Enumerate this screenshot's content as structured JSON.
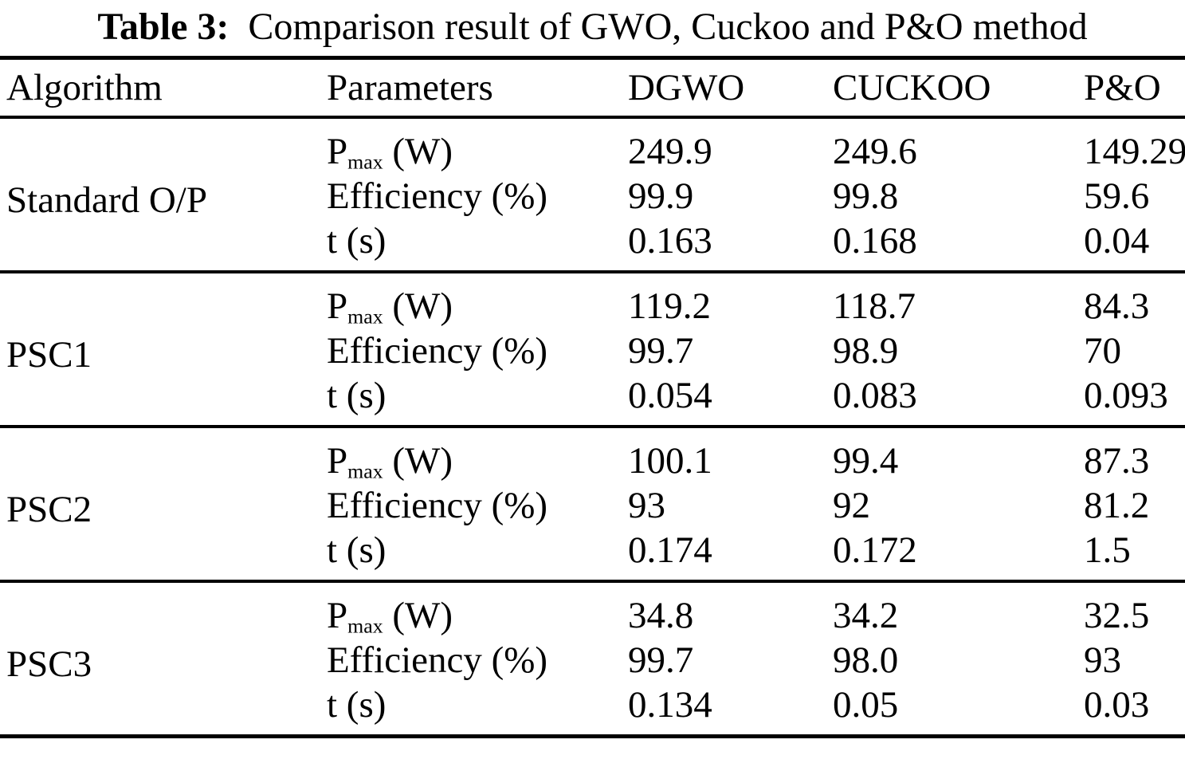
{
  "title": {
    "label": "Table 3:",
    "text": "Comparison result of GWO, Cuckoo and P&O method"
  },
  "params": {
    "pmax": {
      "base": "P",
      "sub": "max",
      "unit": "(W)"
    },
    "efficiency": "Efficiency (%)",
    "time": "t (s)"
  },
  "table": {
    "headers": [
      "Algorithm",
      "Parameters",
      "DGWO",
      "CUCKOO",
      "P&O"
    ],
    "groups": [
      {
        "algorithm": "Standard O/P",
        "pmax": {
          "dgwo": "249.9",
          "cuckoo": "249.6",
          "po": "149.29"
        },
        "efficiency": {
          "dgwo": "99.9",
          "cuckoo": "99.8",
          "po": "59.6"
        },
        "time": {
          "dgwo": "0.163",
          "cuckoo": "0.168",
          "po": "0.04"
        }
      },
      {
        "algorithm": "PSC1",
        "pmax": {
          "dgwo": "119.2",
          "cuckoo": "118.7",
          "po": "84.3"
        },
        "efficiency": {
          "dgwo": "99.7",
          "cuckoo": "98.9",
          "po": "70"
        },
        "time": {
          "dgwo": "0.054",
          "cuckoo": "0.083",
          "po": "0.093"
        }
      },
      {
        "algorithm": "PSC2",
        "pmax": {
          "dgwo": "100.1",
          "cuckoo": "99.4",
          "po": "87.3"
        },
        "efficiency": {
          "dgwo": "93",
          "cuckoo": "92",
          "po": "81.2"
        },
        "time": {
          "dgwo": "0.174",
          "cuckoo": "0.172",
          "po": "1.5"
        }
      },
      {
        "algorithm": "PSC3",
        "pmax": {
          "dgwo": "34.8",
          "cuckoo": "34.2",
          "po": "32.5"
        },
        "efficiency": {
          "dgwo": "99.7",
          "cuckoo": "98.0",
          "po": "93"
        },
        "time": {
          "dgwo": "0.134",
          "cuckoo": "0.05",
          "po": "0.03"
        }
      }
    ]
  }
}
